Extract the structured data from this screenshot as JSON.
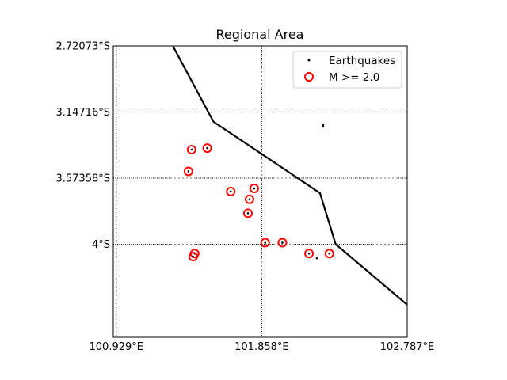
{
  "chart_data": {
    "type": "scatter",
    "title": "Regional Area",
    "xlabel": "",
    "ylabel": "",
    "x_range_deg_east": [
      100.91,
      102.787
    ],
    "y_range_deg_south": [
      2.72073,
      4.6
    ],
    "x_ticks": [
      {
        "value": 100.929,
        "label": "100.929°E"
      },
      {
        "value": 101.858,
        "label": "101.858°E"
      },
      {
        "value": 102.787,
        "label": "102.787°E"
      }
    ],
    "y_ticks": [
      {
        "value": 2.72073,
        "label": "2.72073°S"
      },
      {
        "value": 3.14716,
        "label": "3.14716°S"
      },
      {
        "value": 3.57358,
        "label": "3.57358°S"
      },
      {
        "value": 4.0,
        "label": "4°S"
      }
    ],
    "grid": "dotted",
    "legend_position": "top-right",
    "legend": [
      {
        "label": "Earthquakes",
        "marker": "small black dot",
        "color": "#000000"
      },
      {
        "label": "M >= 2.0",
        "marker": "red open circle",
        "color": "#ff0000"
      }
    ],
    "boundary_line": {
      "color": "#000000",
      "points": [
        {
          "lon": 101.29,
          "lat_s": 2.72
        },
        {
          "lon": 101.55,
          "lat_s": 3.21
        },
        {
          "lon": 102.23,
          "lat_s": 3.67
        },
        {
          "lon": 102.33,
          "lat_s": 4.0
        },
        {
          "lon": 102.787,
          "lat_s": 4.39
        }
      ]
    },
    "earthquakes": [
      {
        "lon": 102.25,
        "lat_s": 3.23,
        "large": false
      },
      {
        "lon": 102.25,
        "lat_s": 3.24,
        "large": false
      },
      {
        "lon": 102.21,
        "lat_s": 4.09,
        "large": false
      },
      {
        "lon": 101.41,
        "lat_s": 3.39,
        "large": true
      },
      {
        "lon": 101.51,
        "lat_s": 3.38,
        "large": true
      },
      {
        "lon": 101.39,
        "lat_s": 3.53,
        "large": true
      },
      {
        "lon": 101.66,
        "lat_s": 3.66,
        "large": true
      },
      {
        "lon": 101.81,
        "lat_s": 3.64,
        "large": true
      },
      {
        "lon": 101.78,
        "lat_s": 3.71,
        "large": true
      },
      {
        "lon": 101.77,
        "lat_s": 3.8,
        "large": true
      },
      {
        "lon": 101.88,
        "lat_s": 3.99,
        "large": true
      },
      {
        "lon": 101.99,
        "lat_s": 3.99,
        "large": true
      },
      {
        "lon": 102.16,
        "lat_s": 4.06,
        "large": true
      },
      {
        "lon": 102.29,
        "lat_s": 4.06,
        "large": true
      },
      {
        "lon": 101.43,
        "lat_s": 4.06,
        "large": true
      },
      {
        "lon": 101.42,
        "lat_s": 4.08,
        "large": true
      }
    ]
  }
}
